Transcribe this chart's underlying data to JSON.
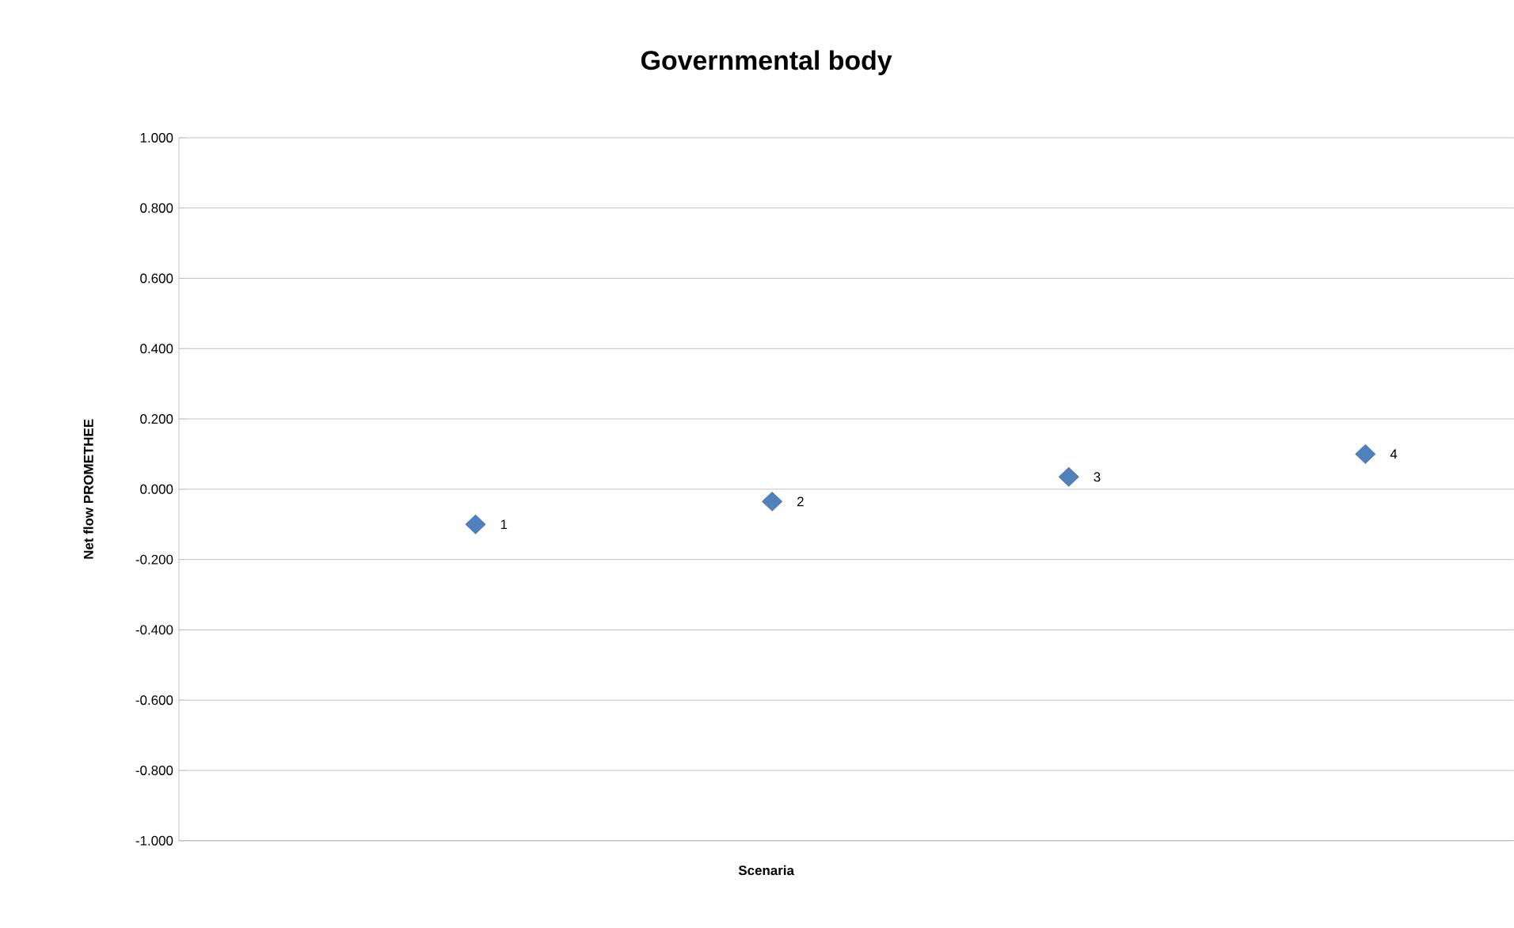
{
  "chart_data": {
    "type": "scatter",
    "title": "Governmental body",
    "xlabel": "Scenaria",
    "ylabel": "Net flow PROMETHEE",
    "categories": [
      null,
      null,
      null,
      null
    ],
    "series": [
      {
        "color": "#4f81bd",
        "values": [
          -0.1,
          -0.035,
          0.035,
          0.1
        ]
      }
    ],
    "annotations": [
      "1",
      "2",
      "3",
      "4"
    ],
    "ylim": [
      -1,
      1
    ],
    "yticks": [
      {
        "value": -1,
        "label": "-1.000"
      },
      {
        "value": -0.8,
        "label": "-0.800"
      },
      {
        "value": -0.6,
        "label": "-0.600"
      },
      {
        "value": -0.4,
        "label": "-0.400"
      },
      {
        "value": -0.2,
        "label": "-0.200"
      },
      {
        "value": 0,
        "label": "0.000"
      },
      {
        "value": 0.2,
        "label": "0.200"
      },
      {
        "value": 0.4,
        "label": "0.400"
      },
      {
        "value": 0.6,
        "label": "0.600"
      },
      {
        "value": 0.8,
        "label": "0.800"
      },
      {
        "value": 1,
        "label": "1.000"
      }
    ],
    "grid": "y",
    "marker": "diamond",
    "tick_labels": "y"
  }
}
